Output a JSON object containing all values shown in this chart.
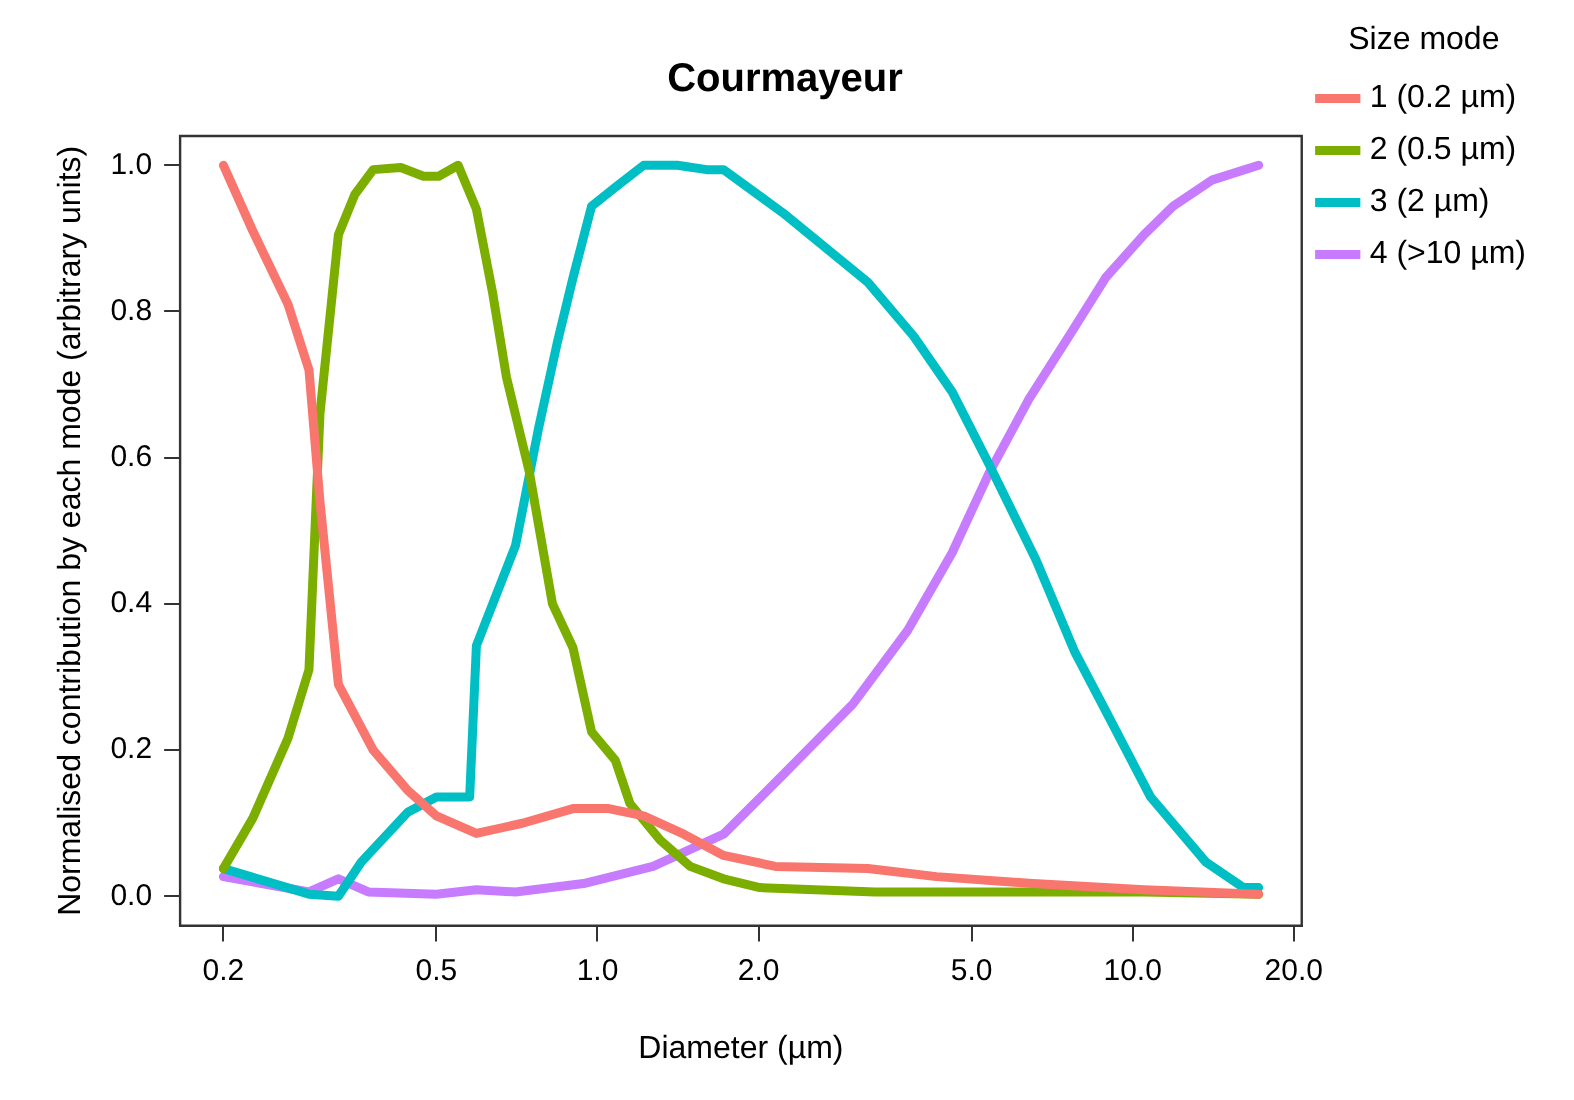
{
  "chart_data": {
    "type": "line",
    "title": "Courmayeur",
    "xlabel": "Diameter (µm)",
    "ylabel": "Normalised contribution by each mode (arbitrary units)",
    "legend_title": "Size mode",
    "log": "x",
    "xlim": [
      0.166,
      20.7
    ],
    "xticks": [
      {
        "value": 0.2,
        "label": "0.2"
      },
      {
        "value": 0.5,
        "label": "0.5"
      },
      {
        "value": 1,
        "label": "1.0"
      },
      {
        "value": 2,
        "label": "2.0"
      },
      {
        "value": 5,
        "label": "5.0"
      },
      {
        "value": 10,
        "label": "10.0"
      },
      {
        "value": 20,
        "label": "20.0"
      }
    ],
    "ylim": [
      -0.04,
      1.04
    ],
    "yticks": [
      {
        "value": 0,
        "label": "0.0"
      },
      {
        "value": 0.2,
        "label": "0.2"
      },
      {
        "value": 0.4,
        "label": "0.4"
      },
      {
        "value": 0.6,
        "label": "0.6"
      },
      {
        "value": 0.8,
        "label": "0.8"
      },
      {
        "value": 1,
        "label": "1.0"
      }
    ],
    "grid": false,
    "legend": "right",
    "marker": "none",
    "line_style": "solid",
    "series": [
      {
        "name": "1 (0.2 µm)",
        "color": "#f8766d",
        "x": [
          0.2,
          0.227,
          0.264,
          0.289,
          0.303,
          0.328,
          0.381,
          0.442,
          0.5,
          0.594,
          0.724,
          0.9,
          1.05,
          1.22,
          1.45,
          1.72,
          2.15,
          3.2,
          4.3,
          6.4,
          10.5,
          17.2
        ],
        "values": [
          1,
          0.91,
          0.81,
          0.72,
          0.54,
          0.29,
          0.2,
          0.145,
          0.11,
          0.086,
          0.1,
          0.12,
          0.12,
          0.11,
          0.085,
          0.056,
          0.041,
          0.038,
          0.027,
          0.018,
          0.009,
          0.003
        ]
      },
      {
        "name": "2 (0.5 µm)",
        "color": "#7cae00",
        "x": [
          0.2,
          0.227,
          0.264,
          0.289,
          0.303,
          0.328,
          0.352,
          0.381,
          0.429,
          0.473,
          0.505,
          0.549,
          0.594,
          0.637,
          0.676,
          0.746,
          0.824,
          0.9,
          0.975,
          1.08,
          1.15,
          1.31,
          1.49,
          1.72,
          2.01,
          3.3,
          5.4,
          10.5,
          17.2
        ],
        "values": [
          0.038,
          0.107,
          0.216,
          0.31,
          0.66,
          0.905,
          0.96,
          0.994,
          0.997,
          0.985,
          0.985,
          1,
          0.94,
          0.825,
          0.71,
          0.58,
          0.4,
          0.34,
          0.225,
          0.186,
          0.127,
          0.077,
          0.041,
          0.024,
          0.012,
          0.006,
          0.006,
          0.006,
          0.003
        ]
      },
      {
        "name": "3 (2 µm)",
        "color": "#00bfc4",
        "x": [
          0.2,
          0.289,
          0.328,
          0.362,
          0.442,
          0.5,
          0.577,
          0.594,
          0.703,
          0.776,
          0.841,
          0.9,
          0.975,
          1.08,
          1.22,
          1.41,
          1.6,
          1.72,
          2.22,
          3.2,
          3.9,
          4.6,
          5.4,
          6.6,
          7.8,
          8.9,
          10.8,
          13.7,
          16.1,
          17.2
        ],
        "values": [
          0.038,
          0.003,
          0,
          0.047,
          0.115,
          0.136,
          0.136,
          0.343,
          0.48,
          0.64,
          0.757,
          0.846,
          0.944,
          0.97,
          1,
          1,
          0.994,
          0.994,
          0.935,
          0.84,
          0.766,
          0.69,
          0.59,
          0.46,
          0.334,
          0.254,
          0.136,
          0.047,
          0.012,
          0.012
        ]
      },
      {
        "name": "4 (>10 µm)",
        "color": "#c77cff",
        "x": [
          0.2,
          0.289,
          0.328,
          0.373,
          0.5,
          0.594,
          0.703,
          0.95,
          1.27,
          1.72,
          2.22,
          3,
          3.8,
          4.6,
          5.4,
          6.4,
          7.6,
          8.9,
          10.5,
          11.9,
          14.1,
          17.2
        ],
        "values": [
          0.027,
          0.006,
          0.024,
          0.006,
          0.003,
          0.009,
          0.006,
          0.018,
          0.041,
          0.085,
          0.166,
          0.263,
          0.364,
          0.47,
          0.58,
          0.68,
          0.766,
          0.846,
          0.905,
          0.944,
          0.98,
          1
        ]
      }
    ]
  }
}
